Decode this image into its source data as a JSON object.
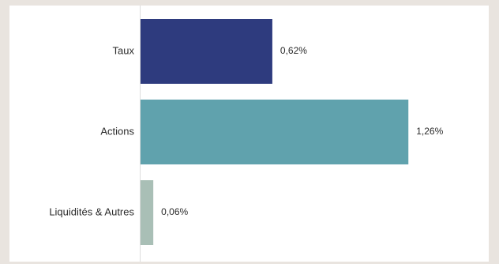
{
  "chart_data": {
    "type": "bar",
    "orientation": "horizontal",
    "categories": [
      "Taux",
      "Actions",
      "Liquidités & Autres"
    ],
    "values": [
      0.62,
      1.26,
      0.06
    ],
    "value_labels": [
      "0,62%",
      "1,26%",
      "0,06%"
    ],
    "colors": [
      "#2e3b7e",
      "#60a2ad",
      "#a9bfb6"
    ],
    "xlim": [
      0,
      1.3
    ],
    "grid": false,
    "legend": "none",
    "title": "",
    "xlabel": "",
    "ylabel": ""
  },
  "colors": {
    "background": "#e9e4df",
    "panel": "#ffffff",
    "axis": "#dcdcdc"
  }
}
